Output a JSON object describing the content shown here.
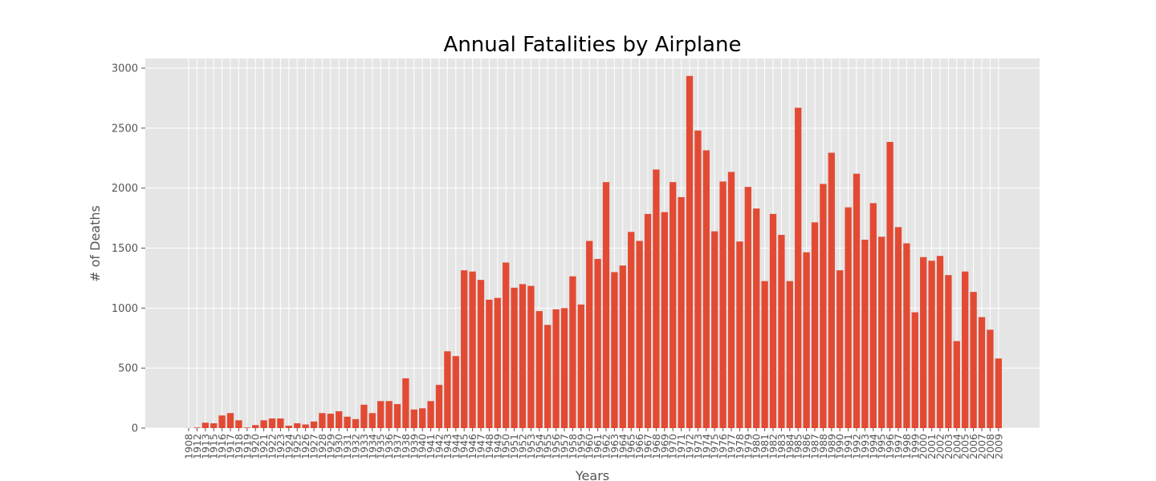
{
  "chart_data": {
    "type": "bar",
    "title": "Annual Fatalities by Airplane",
    "xlabel": "Years",
    "ylabel": "# of Deaths",
    "ylim": [
      0,
      3000
    ],
    "yticks": [
      0,
      500,
      1000,
      1500,
      2000,
      2500,
      3000
    ],
    "grid": true,
    "bar_color": "#E24A33",
    "background_color": "#E5E5E5",
    "categories": [
      "1908",
      "1912",
      "1913",
      "1915",
      "1916",
      "1917",
      "1918",
      "1919",
      "1920",
      "1921",
      "1922",
      "1923",
      "1924",
      "1925",
      "1926",
      "1927",
      "1928",
      "1929",
      "1930",
      "1931",
      "1932",
      "1933",
      "1934",
      "1935",
      "1936",
      "1937",
      "1938",
      "1939",
      "1940",
      "1941",
      "1942",
      "1943",
      "1944",
      "1945",
      "1946",
      "1947",
      "1948",
      "1949",
      "1950",
      "1951",
      "1952",
      "1953",
      "1954",
      "1955",
      "1956",
      "1957",
      "1958",
      "1959",
      "1960",
      "1961",
      "1962",
      "1963",
      "1964",
      "1965",
      "1966",
      "1967",
      "1968",
      "1969",
      "1970",
      "1971",
      "1972",
      "1973",
      "1974",
      "1975",
      "1976",
      "1977",
      "1978",
      "1979",
      "1980",
      "1981",
      "1982",
      "1983",
      "1984",
      "1985",
      "1986",
      "1987",
      "1988",
      "1989",
      "1990",
      "1991",
      "1992",
      "1993",
      "1994",
      "1995",
      "1996",
      "1997",
      "1998",
      "1999",
      "2000",
      "2001",
      "2002",
      "2003",
      "2004",
      "2005",
      "2006",
      "2007",
      "2008",
      "2009"
    ],
    "values": [
      1,
      5,
      45,
      40,
      105,
      125,
      65,
      5,
      25,
      65,
      80,
      80,
      20,
      40,
      30,
      55,
      125,
      120,
      140,
      95,
      75,
      195,
      125,
      225,
      225,
      200,
      415,
      155,
      165,
      225,
      360,
      640,
      600,
      1315,
      1305,
      1235,
      1070,
      1085,
      1380,
      1170,
      1200,
      1185,
      975,
      860,
      990,
      1000,
      1265,
      1030,
      1560,
      1410,
      2050,
      1300,
      1355,
      1635,
      1560,
      1785,
      2155,
      1800,
      2050,
      1925,
      2935,
      2480,
      2315,
      1640,
      2055,
      2135,
      1555,
      2010,
      1830,
      1225,
      1785,
      1610,
      1225,
      2670,
      1465,
      1715,
      2035,
      2295,
      1315,
      1840,
      2120,
      1570,
      1875,
      1595,
      2385,
      1675,
      1540,
      965,
      1425,
      1395,
      1435,
      1275,
      725,
      1305,
      1135,
      925,
      820,
      580
    ]
  }
}
